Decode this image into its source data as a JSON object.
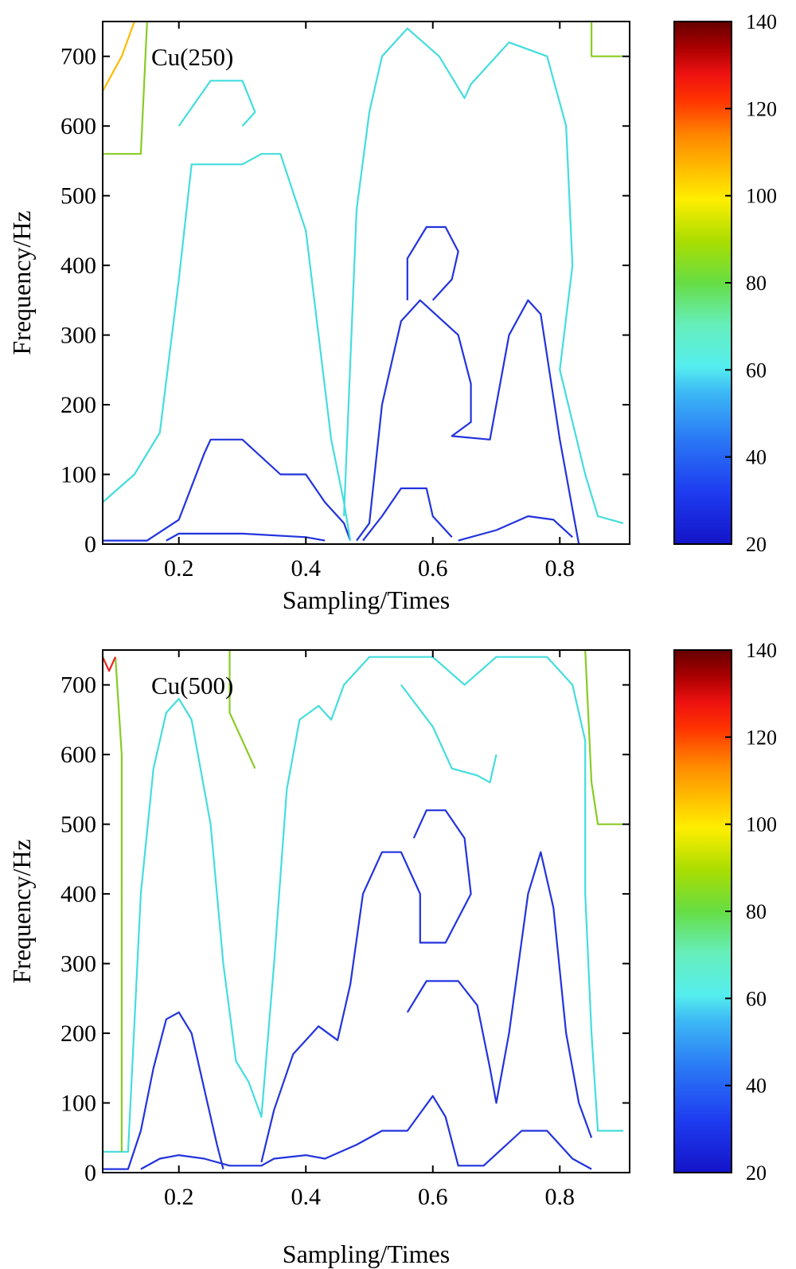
{
  "chart_data": [
    {
      "type": "contour",
      "panel_label": "Cu(250)",
      "xlabel": "Sampling/Times",
      "ylabel": "Frequency/Hz",
      "xlim": [
        0.08,
        0.91
      ],
      "ylim": [
        0,
        750
      ],
      "xticks": [
        0.2,
        0.4,
        0.6,
        0.8
      ],
      "yticks": [
        0,
        100,
        200,
        300,
        400,
        500,
        600,
        700
      ],
      "colorbar": {
        "min": 20,
        "max": 140,
        "ticks": [
          20,
          40,
          60,
          80,
          100,
          120,
          140
        ]
      },
      "contours": [
        {
          "level": 30,
          "color": "#2233dd",
          "points": [
            [
              0.08,
              5
            ],
            [
              0.15,
              5
            ],
            [
              0.2,
              35
            ],
            [
              0.24,
              130
            ],
            [
              0.25,
              150
            ],
            [
              0.3,
              150
            ],
            [
              0.36,
              100
            ],
            [
              0.4,
              100
            ],
            [
              0.43,
              60
            ],
            [
              0.46,
              30
            ],
            [
              0.47,
              5
            ]
          ]
        },
        {
          "level": 30,
          "color": "#2233dd",
          "points": [
            [
              0.18,
              5
            ],
            [
              0.2,
              15
            ],
            [
              0.3,
              15
            ],
            [
              0.4,
              10
            ],
            [
              0.43,
              5
            ]
          ]
        },
        {
          "level": 30,
          "color": "#2233dd",
          "points": [
            [
              0.48,
              5
            ],
            [
              0.5,
              30
            ],
            [
              0.52,
              200
            ],
            [
              0.55,
              320
            ],
            [
              0.58,
              350
            ],
            [
              0.64,
              300
            ],
            [
              0.66,
              230
            ],
            [
              0.66,
              175
            ],
            [
              0.63,
              155
            ],
            [
              0.69,
              150
            ],
            [
              0.72,
              300
            ],
            [
              0.75,
              350
            ],
            [
              0.77,
              330
            ],
            [
              0.8,
              150
            ],
            [
              0.82,
              50
            ],
            [
              0.83,
              0
            ]
          ]
        },
        {
          "level": 30,
          "color": "#2233dd",
          "points": [
            [
              0.56,
              350
            ],
            [
              0.56,
              410
            ],
            [
              0.59,
              455
            ],
            [
              0.62,
              455
            ],
            [
              0.64,
              420
            ],
            [
              0.63,
              380
            ],
            [
              0.6,
              350
            ]
          ]
        },
        {
          "level": 30,
          "color": "#2233dd",
          "points": [
            [
              0.49,
              5
            ],
            [
              0.52,
              40
            ],
            [
              0.55,
              80
            ],
            [
              0.59,
              80
            ],
            [
              0.6,
              40
            ],
            [
              0.63,
              10
            ]
          ]
        },
        {
          "level": 30,
          "color": "#2233dd",
          "points": [
            [
              0.64,
              5
            ],
            [
              0.7,
              20
            ],
            [
              0.75,
              40
            ],
            [
              0.79,
              35
            ],
            [
              0.82,
              10
            ]
          ]
        },
        {
          "level": 60,
          "color": "#44dddd",
          "points": [
            [
              0.08,
              60
            ],
            [
              0.13,
              100
            ],
            [
              0.17,
              160
            ],
            [
              0.2,
              380
            ],
            [
              0.22,
              545
            ],
            [
              0.3,
              545
            ],
            [
              0.33,
              560
            ],
            [
              0.36,
              560
            ],
            [
              0.4,
              450
            ],
            [
              0.42,
              300
            ],
            [
              0.44,
              150
            ],
            [
              0.46,
              60
            ],
            [
              0.47,
              5
            ]
          ]
        },
        {
          "level": 60,
          "color": "#44dddd",
          "points": [
            [
              0.46,
              40
            ],
            [
              0.48,
              480
            ],
            [
              0.5,
              620
            ],
            [
              0.52,
              700
            ],
            [
              0.56,
              740
            ],
            [
              0.61,
              700
            ],
            [
              0.65,
              640
            ],
            [
              0.66,
              660
            ],
            [
              0.72,
              720
            ],
            [
              0.78,
              700
            ],
            [
              0.81,
              600
            ],
            [
              0.82,
              400
            ],
            [
              0.8,
              250
            ],
            [
              0.84,
              100
            ],
            [
              0.86,
              40
            ],
            [
              0.9,
              30
            ]
          ]
        },
        {
          "level": 60,
          "color": "#44dddd",
          "points": [
            [
              0.2,
              600
            ],
            [
              0.25,
              665
            ],
            [
              0.3,
              665
            ],
            [
              0.32,
              620
            ],
            [
              0.3,
              600
            ]
          ]
        },
        {
          "level": 85,
          "color": "#88cc22",
          "points": [
            [
              0.08,
              560
            ],
            [
              0.14,
              560
            ],
            [
              0.15,
              750
            ]
          ]
        },
        {
          "level": 85,
          "color": "#88cc22",
          "points": [
            [
              0.85,
              750
            ],
            [
              0.85,
              700
            ],
            [
              0.9,
              700
            ]
          ]
        },
        {
          "level": 100,
          "color": "#ffbb00",
          "points": [
            [
              0.08,
              650
            ],
            [
              0.11,
              700
            ],
            [
              0.13,
              750
            ]
          ]
        }
      ]
    },
    {
      "type": "contour",
      "panel_label": "Cu(500)",
      "xlabel": "Sampling/Times",
      "ylabel": "Frequency/Hz",
      "xlim": [
        0.08,
        0.91
      ],
      "ylim": [
        0,
        750
      ],
      "xticks": [
        0.2,
        0.4,
        0.6,
        0.8
      ],
      "yticks": [
        0,
        100,
        200,
        300,
        400,
        500,
        600,
        700
      ],
      "colorbar": {
        "min": 20,
        "max": 140,
        "ticks": [
          20,
          40,
          60,
          80,
          100,
          120,
          140
        ]
      },
      "contours": [
        {
          "level": 30,
          "color": "#2233dd",
          "points": [
            [
              0.08,
              5
            ],
            [
              0.12,
              5
            ],
            [
              0.14,
              60
            ],
            [
              0.16,
              150
            ],
            [
              0.18,
              220
            ],
            [
              0.2,
              230
            ],
            [
              0.22,
              200
            ],
            [
              0.24,
              120
            ],
            [
              0.26,
              40
            ],
            [
              0.27,
              5
            ]
          ]
        },
        {
          "level": 30,
          "color": "#2233dd",
          "points": [
            [
              0.14,
              5
            ],
            [
              0.17,
              20
            ],
            [
              0.2,
              25
            ],
            [
              0.24,
              20
            ],
            [
              0.28,
              10
            ],
            [
              0.33,
              10
            ],
            [
              0.35,
              20
            ],
            [
              0.4,
              25
            ],
            [
              0.43,
              20
            ],
            [
              0.48,
              40
            ],
            [
              0.52,
              60
            ],
            [
              0.56,
              60
            ],
            [
              0.6,
              110
            ],
            [
              0.62,
              80
            ],
            [
              0.64,
              10
            ],
            [
              0.68,
              10
            ],
            [
              0.74,
              60
            ],
            [
              0.78,
              60
            ],
            [
              0.82,
              20
            ],
            [
              0.85,
              5
            ]
          ]
        },
        {
          "level": 30,
          "color": "#2233dd",
          "points": [
            [
              0.33,
              15
            ],
            [
              0.35,
              90
            ],
            [
              0.38,
              170
            ],
            [
              0.42,
              210
            ],
            [
              0.45,
              190
            ],
            [
              0.47,
              270
            ],
            [
              0.49,
              400
            ],
            [
              0.52,
              460
            ],
            [
              0.55,
              460
            ],
            [
              0.58,
              400
            ],
            [
              0.58,
              330
            ],
            [
              0.62,
              330
            ],
            [
              0.66,
              400
            ],
            [
              0.65,
              480
            ],
            [
              0.62,
              520
            ],
            [
              0.59,
              520
            ],
            [
              0.57,
              480
            ]
          ]
        },
        {
          "level": 30,
          "color": "#2233dd",
          "points": [
            [
              0.56,
              230
            ],
            [
              0.59,
              275
            ],
            [
              0.64,
              275
            ],
            [
              0.67,
              240
            ],
            [
              0.69,
              150
            ],
            [
              0.7,
              100
            ],
            [
              0.72,
              200
            ],
            [
              0.75,
              400
            ],
            [
              0.77,
              460
            ],
            [
              0.79,
              380
            ],
            [
              0.81,
              200
            ],
            [
              0.83,
              100
            ],
            [
              0.85,
              50
            ]
          ]
        },
        {
          "level": 60,
          "color": "#44dddd",
          "points": [
            [
              0.08,
              30
            ],
            [
              0.12,
              30
            ],
            [
              0.14,
              400
            ],
            [
              0.16,
              580
            ],
            [
              0.18,
              660
            ],
            [
              0.2,
              680
            ],
            [
              0.22,
              650
            ],
            [
              0.25,
              500
            ],
            [
              0.27,
              300
            ],
            [
              0.29,
              160
            ],
            [
              0.31,
              130
            ],
            [
              0.33,
              80
            ],
            [
              0.35,
              300
            ],
            [
              0.37,
              550
            ],
            [
              0.39,
              650
            ],
            [
              0.42,
              670
            ],
            [
              0.44,
              650
            ],
            [
              0.46,
              700
            ],
            [
              0.5,
              740
            ],
            [
              0.6,
              740
            ],
            [
              0.65,
              700
            ],
            [
              0.7,
              740
            ],
            [
              0.78,
              740
            ],
            [
              0.82,
              700
            ],
            [
              0.84,
              620
            ],
            [
              0.84,
              400
            ],
            [
              0.85,
              200
            ],
            [
              0.86,
              60
            ],
            [
              0.9,
              60
            ]
          ]
        },
        {
          "level": 60,
          "color": "#44dddd",
          "points": [
            [
              0.55,
              700
            ],
            [
              0.6,
              640
            ],
            [
              0.62,
              600
            ],
            [
              0.63,
              580
            ],
            [
              0.67,
              570
            ],
            [
              0.69,
              560
            ],
            [
              0.7,
              600
            ]
          ]
        },
        {
          "level": 85,
          "color": "#88cc22",
          "points": [
            [
              0.1,
              740
            ],
            [
              0.11,
              600
            ],
            [
              0.11,
              30
            ]
          ]
        },
        {
          "level": 85,
          "color": "#88cc22",
          "points": [
            [
              0.28,
              750
            ],
            [
              0.28,
              660
            ],
            [
              0.3,
              620
            ],
            [
              0.32,
              580
            ]
          ]
        },
        {
          "level": 85,
          "color": "#88cc22",
          "points": [
            [
              0.84,
              750
            ],
            [
              0.85,
              560
            ],
            [
              0.86,
              500
            ],
            [
              0.9,
              500
            ]
          ]
        },
        {
          "level": 120,
          "color": "#ee2222",
          "points": [
            [
              0.08,
              740
            ],
            [
              0.09,
              720
            ],
            [
              0.1,
              740
            ]
          ]
        }
      ]
    }
  ]
}
